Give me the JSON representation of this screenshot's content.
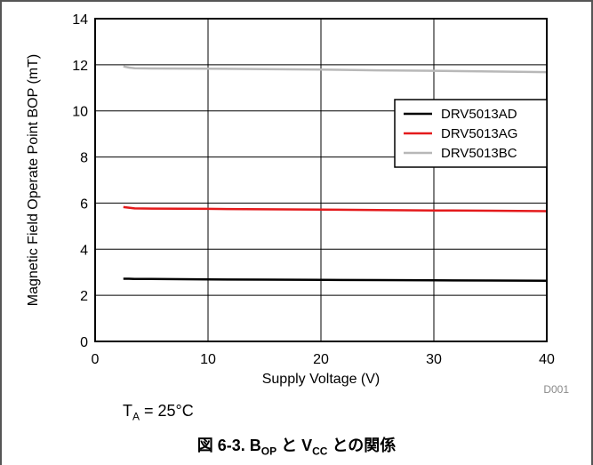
{
  "chart_data": {
    "type": "line",
    "xlabel": "Supply Voltage (V)",
    "ylabel": "Magnetic Field Operate Point BOP (mT)",
    "xlim": [
      0,
      40
    ],
    "ylim": [
      0,
      14
    ],
    "xticks": [
      0,
      10,
      20,
      30,
      40
    ],
    "yticks": [
      0,
      2,
      4,
      6,
      8,
      10,
      12,
      14
    ],
    "grid": true,
    "legend_position": "right",
    "series": [
      {
        "name": "DRV5013AD",
        "color": "#000000",
        "x": [
          2.5,
          3,
          3.5,
          5,
          10,
          15,
          20,
          25,
          30,
          35,
          40
        ],
        "y": [
          2.72,
          2.72,
          2.71,
          2.71,
          2.69,
          2.68,
          2.67,
          2.66,
          2.65,
          2.64,
          2.63
        ]
      },
      {
        "name": "DRV5013AG",
        "color": "#e41a1c",
        "x": [
          2.5,
          3,
          3.5,
          5,
          10,
          15,
          20,
          25,
          30,
          35,
          40
        ],
        "y": [
          5.83,
          5.8,
          5.77,
          5.76,
          5.75,
          5.73,
          5.72,
          5.7,
          5.68,
          5.67,
          5.65
        ]
      },
      {
        "name": "DRV5013BC",
        "color": "#b8b8b8",
        "x": [
          2.5,
          3,
          3.5,
          5,
          10,
          15,
          20,
          25,
          30,
          35,
          40
        ],
        "y": [
          11.93,
          11.88,
          11.85,
          11.84,
          11.83,
          11.81,
          11.79,
          11.76,
          11.74,
          11.71,
          11.68
        ]
      }
    ],
    "code": "D001"
  },
  "condition": {
    "prefix": "T",
    "sub": "A",
    "suffix": " = 25°C"
  },
  "caption": {
    "prefix": "図 6-3. B",
    "sub1": "OP",
    "mid": " と V",
    "sub2": "CC",
    "suffix": " との関係"
  }
}
